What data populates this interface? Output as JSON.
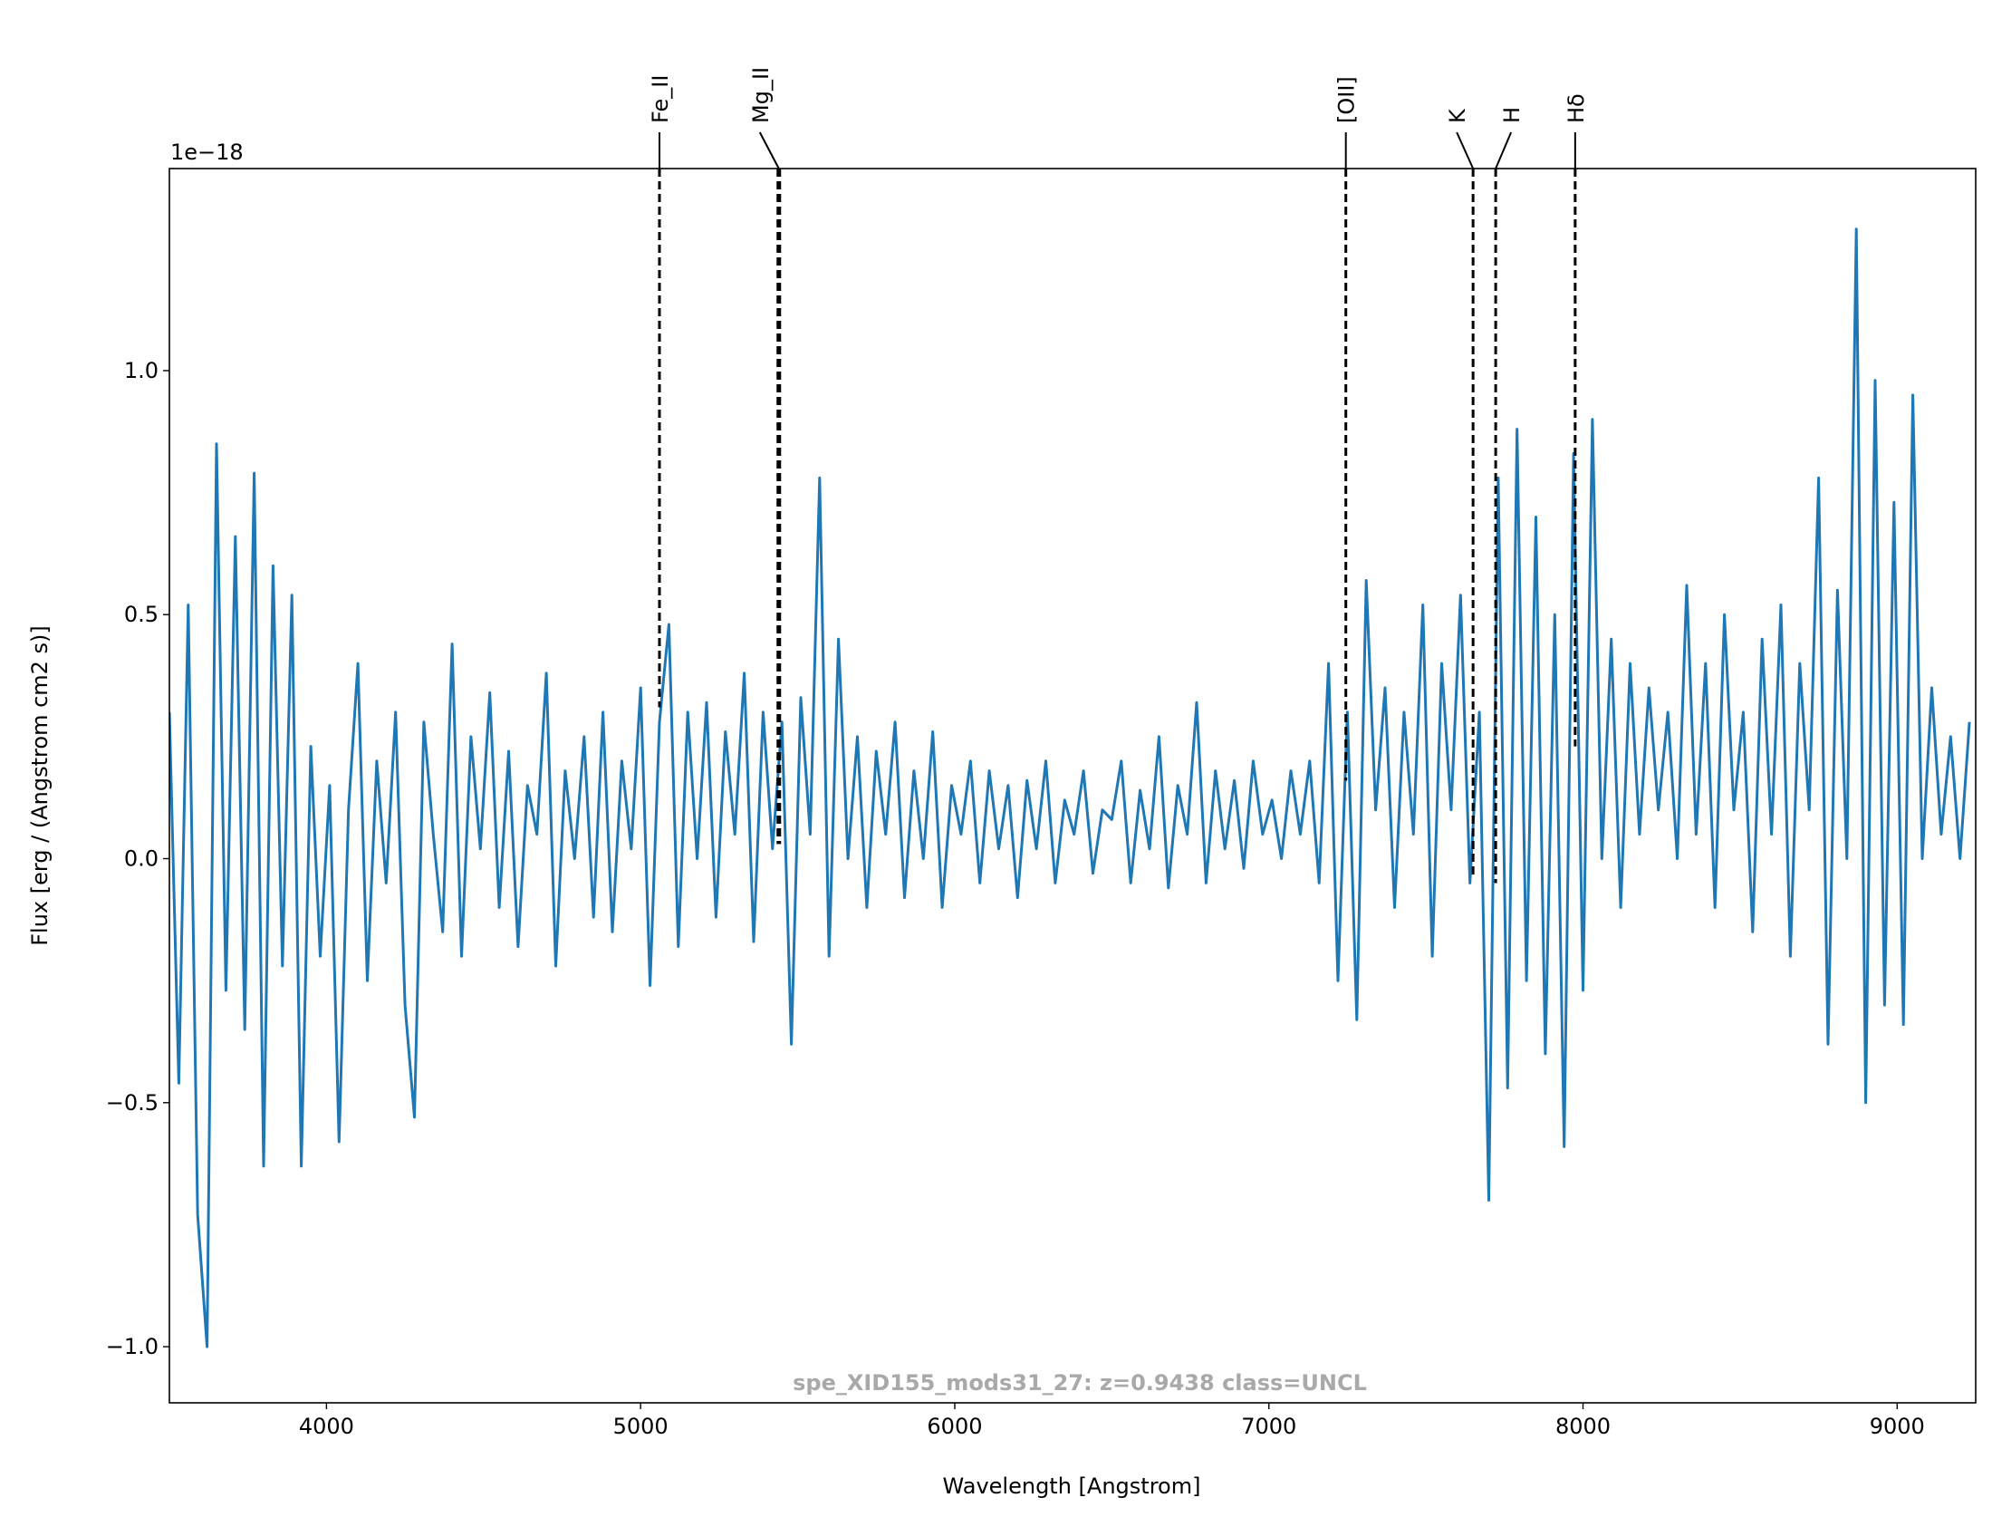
{
  "chart_data": {
    "type": "line",
    "title": "spe_XID155_mods31_27: z=0.9438 class=UNCL",
    "xlabel": "Wavelength [Angstrom]",
    "ylabel": "Flux [erg / (Angstrom cm2 s)]",
    "y_offset_label": "1e−18",
    "xlim": [
      3500,
      9250
    ],
    "ylim": [
      -1.115,
      1.414
    ],
    "xticks": [
      4000,
      5000,
      6000,
      7000,
      8000,
      9000
    ],
    "yticks": [
      {
        "value": -1.0,
        "label": "−1.0"
      },
      {
        "value": -0.5,
        "label": "−0.5"
      },
      {
        "value": 0.0,
        "label": "0.0"
      },
      {
        "value": 0.5,
        "label": "0.5"
      },
      {
        "value": 1.0,
        "label": "1.0"
      }
    ],
    "grid": false,
    "x": [
      3500,
      3530,
      3560,
      3590,
      3620,
      3650,
      3680,
      3710,
      3740,
      3770,
      3800,
      3830,
      3860,
      3890,
      3920,
      3950,
      3980,
      4010,
      4040,
      4070,
      4100,
      4130,
      4160,
      4190,
      4220,
      4250,
      4280,
      4310,
      4340,
      4370,
      4400,
      4430,
      4460,
      4490,
      4520,
      4550,
      4580,
      4610,
      4640,
      4670,
      4700,
      4730,
      4760,
      4790,
      4820,
      4850,
      4880,
      4910,
      4940,
      4970,
      5000,
      5030,
      5060,
      5090,
      5120,
      5150,
      5180,
      5210,
      5240,
      5270,
      5300,
      5330,
      5360,
      5390,
      5420,
      5450,
      5480,
      5510,
      5540,
      5570,
      5600,
      5630,
      5660,
      5690,
      5720,
      5750,
      5780,
      5810,
      5840,
      5870,
      5900,
      5930,
      5960,
      5990,
      6020,
      6050,
      6080,
      6110,
      6140,
      6170,
      6200,
      6230,
      6260,
      6290,
      6320,
      6350,
      6380,
      6410,
      6440,
      6470,
      6500,
      6530,
      6560,
      6590,
      6620,
      6650,
      6680,
      6710,
      6740,
      6770,
      6800,
      6830,
      6860,
      6890,
      6920,
      6950,
      6980,
      7010,
      7040,
      7070,
      7100,
      7130,
      7160,
      7190,
      7220,
      7250,
      7280,
      7310,
      7340,
      7370,
      7400,
      7430,
      7460,
      7490,
      7520,
      7550,
      7580,
      7610,
      7640,
      7670,
      7700,
      7730,
      7760,
      7790,
      7820,
      7850,
      7880,
      7910,
      7940,
      7970,
      8000,
      8030,
      8060,
      8090,
      8120,
      8150,
      8180,
      8210,
      8240,
      8270,
      8300,
      8330,
      8360,
      8390,
      8420,
      8450,
      8480,
      8510,
      8540,
      8570,
      8600,
      8630,
      8660,
      8690,
      8720,
      8750,
      8780,
      8810,
      8840,
      8870,
      8900,
      8930,
      8960,
      8990,
      9020,
      9050,
      9080,
      9110,
      9140,
      9170,
      9200,
      9230
    ],
    "series": [
      {
        "color": "#1f77b4",
        "values": [
          0.3,
          -0.46,
          0.52,
          -0.73,
          -1.0,
          0.85,
          -0.27,
          0.66,
          -0.35,
          0.79,
          -0.63,
          0.6,
          -0.22,
          0.54,
          -0.63,
          0.23,
          -0.2,
          0.15,
          -0.58,
          0.1,
          0.4,
          -0.25,
          0.2,
          -0.05,
          0.3,
          -0.3,
          -0.53,
          0.28,
          0.05,
          -0.15,
          0.44,
          -0.2,
          0.25,
          0.02,
          0.34,
          -0.1,
          0.22,
          -0.18,
          0.15,
          0.05,
          0.38,
          -0.22,
          0.18,
          0.0,
          0.25,
          -0.12,
          0.3,
          -0.15,
          0.2,
          0.02,
          0.35,
          -0.26,
          0.28,
          0.48,
          -0.18,
          0.3,
          0.0,
          0.32,
          -0.12,
          0.26,
          0.05,
          0.38,
          -0.17,
          0.3,
          0.02,
          0.28,
          -0.38,
          0.33,
          0.05,
          0.78,
          -0.2,
          0.45,
          0.0,
          0.25,
          -0.1,
          0.22,
          0.05,
          0.28,
          -0.08,
          0.18,
          0.0,
          0.26,
          -0.1,
          0.15,
          0.05,
          0.2,
          -0.05,
          0.18,
          0.02,
          0.15,
          -0.08,
          0.16,
          0.02,
          0.2,
          -0.05,
          0.12,
          0.05,
          0.18,
          -0.03,
          0.1,
          0.08,
          0.2,
          -0.05,
          0.14,
          0.02,
          0.25,
          -0.06,
          0.15,
          0.05,
          0.32,
          -0.05,
          0.18,
          0.02,
          0.16,
          -0.02,
          0.2,
          0.05,
          0.12,
          0.0,
          0.18,
          0.05,
          0.2,
          -0.05,
          0.4,
          -0.25,
          0.3,
          -0.33,
          0.57,
          0.1,
          0.35,
          -0.1,
          0.3,
          0.05,
          0.52,
          -0.2,
          0.4,
          0.1,
          0.54,
          -0.05,
          0.3,
          -0.7,
          0.78,
          -0.47,
          0.88,
          -0.25,
          0.7,
          -0.4,
          0.5,
          -0.59,
          0.83,
          -0.27,
          0.9,
          0.0,
          0.45,
          -0.1,
          0.4,
          0.05,
          0.35,
          0.1,
          0.3,
          0.0,
          0.56,
          0.05,
          0.4,
          -0.1,
          0.5,
          0.1,
          0.3,
          -0.15,
          0.45,
          0.05,
          0.52,
          -0.2,
          0.4,
          0.1,
          0.78,
          -0.38,
          0.55,
          0.0,
          1.29,
          -0.5,
          0.98,
          -0.3,
          0.73,
          -0.34,
          0.95,
          0.0,
          0.35,
          0.05,
          0.25,
          0.0,
          0.28
        ]
      }
    ],
    "line_markers": [
      {
        "label": "Fe_II",
        "x": 5060,
        "y": 0.31
      },
      {
        "label": "Mg_II",
        "x": 5440,
        "y": 0.03
      },
      {
        "label": "[OII]",
        "x": 7245,
        "y": 0.16
      },
      {
        "label": "K",
        "x": 7650,
        "y": -0.04
      },
      {
        "label": "H",
        "x": 7722,
        "y": -0.05
      },
      {
        "label": "Hδ",
        "x": 7975,
        "y": 0.23
      }
    ]
  }
}
